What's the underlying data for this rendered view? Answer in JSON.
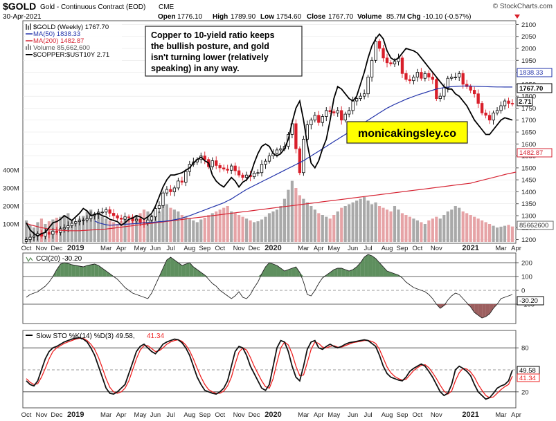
{
  "header": {
    "symbol": "$GOLD",
    "name": "Gold - Continuous Contract (EOD)",
    "exchange": "CME",
    "date": "30-Apr-2021",
    "watermark": "© StockCharts.com",
    "ohlc": {
      "open_label": "Open",
      "open": "1776.10",
      "high_label": "High",
      "high": "1789.90",
      "low_label": "Low",
      "low": "1754.60",
      "close_label": "Close",
      "close": "1767.70",
      "volume_label": "Volume",
      "volume": "85.7M",
      "chg_label": "Chg",
      "chg": "-10.10 (-0.57%)"
    }
  },
  "legend": {
    "gold": "$GOLD (Weekly) 1767.70",
    "ma50": "MA(50) 1838.33",
    "ma200": "MA(200) 1482.87",
    "volume": "Volume 85,662,600",
    "ratio": "$COPPER:$UST10Y 2.71"
  },
  "annotation": {
    "lines": [
      "Copper to 10-yield ratio keeps",
      "the bullish posture, and gold",
      "isn't turning lower (relatively",
      "speaking) in any way."
    ]
  },
  "brand": "monicakingsley.co",
  "price_badges": {
    "ma50": "1838.33",
    "close": "1767.70",
    "ratio": "2.71",
    "ma200": "1482.87",
    "volume": "85662600"
  },
  "cci_panel": {
    "label": "CCI(20) -30.20",
    "badge": "-30.20"
  },
  "sto_panel": {
    "label_main": "Slow STO %K(14) %D(3) 49.58,",
    "label_d": "41.34",
    "badge_k": "49.58",
    "badge_d": "41.34"
  },
  "colors": {
    "up": "#ffffff",
    "down": "#d81f2a",
    "ma50": "#2233aa",
    "ma200": "#d62433",
    "ratio": "#000000",
    "sto_d": "#ee2222",
    "cci_fill_pos": "#5e8f5e",
    "cci_fill_neg": "#9c5f5f",
    "brand_bg": "#ffff00"
  },
  "chart_data": [
    {
      "type": "candlestick",
      "title": "$GOLD Gold - Continuous Contract (EOD) CME",
      "y_ticks": [
        1200,
        1250,
        1300,
        1350,
        1400,
        1450,
        1500,
        1550,
        1600,
        1650,
        1700,
        1750,
        1800,
        1850,
        1900,
        1950,
        2000,
        2050,
        2100
      ],
      "ylim": [
        1190,
        2110
      ],
      "volume_ticks": [
        "100M",
        "200M",
        "300M",
        "400M"
      ],
      "x_tick_labels": [
        {
          "label": "Oct",
          "bold": false
        },
        {
          "label": "Nov",
          "bold": false
        },
        {
          "label": "Dec",
          "bold": false
        },
        {
          "label": "2019",
          "bold": true
        },
        {
          "label": "Mar",
          "bold": false
        },
        {
          "label": "Apr",
          "bold": false
        },
        {
          "label": "May",
          "bold": false
        },
        {
          "label": "Jun",
          "bold": false
        },
        {
          "label": "Jul",
          "bold": false
        },
        {
          "label": "Aug",
          "bold": false
        },
        {
          "label": "Sep",
          "bold": false
        },
        {
          "label": "Oct",
          "bold": false
        },
        {
          "label": "Nov",
          "bold": false
        },
        {
          "label": "Dec",
          "bold": false
        },
        {
          "label": "2020",
          "bold": true
        },
        {
          "label": "Mar",
          "bold": false
        },
        {
          "label": "Apr",
          "bold": false
        },
        {
          "label": "May",
          "bold": false
        },
        {
          "label": "Jun",
          "bold": false
        },
        {
          "label": "Jul",
          "bold": false
        },
        {
          "label": "Aug",
          "bold": false
        },
        {
          "label": "Sep",
          "bold": false
        },
        {
          "label": "Oct",
          "bold": false
        },
        {
          "label": "Nov",
          "bold": false
        },
        {
          "label": "2021",
          "bold": true
        },
        {
          "label": "Mar",
          "bold": false
        },
        {
          "label": "Apr",
          "bold": false
        }
      ],
      "x_tick_weeks": [
        0,
        4,
        8,
        13,
        21,
        25,
        30,
        34,
        38,
        43,
        47,
        51,
        56,
        60,
        65,
        73,
        77,
        81,
        86,
        90,
        95,
        99,
        103,
        108,
        117,
        125,
        129
      ],
      "close": [
        1200,
        1210,
        1215,
        1225,
        1214,
        1230,
        1222,
        1235,
        1230,
        1245,
        1250,
        1258,
        1268,
        1275,
        1280,
        1282,
        1288,
        1300,
        1305,
        1315,
        1315,
        1325,
        1310,
        1300,
        1290,
        1285,
        1295,
        1292,
        1278,
        1285,
        1272,
        1268,
        1282,
        1295,
        1330,
        1342,
        1395,
        1410,
        1400,
        1416,
        1445,
        1440,
        1485,
        1515,
        1525,
        1535,
        1550,
        1535,
        1505,
        1530,
        1510,
        1500,
        1495,
        1490,
        1508,
        1488,
        1470,
        1460,
        1470,
        1463,
        1478,
        1480,
        1515,
        1528,
        1550,
        1560,
        1575,
        1580,
        1590,
        1640,
        1685,
        1580,
        1480,
        1620,
        1680,
        1700,
        1720,
        1690,
        1715,
        1740,
        1735,
        1730,
        1740,
        1700,
        1725,
        1740,
        1780,
        1790,
        1800,
        1810,
        1880,
        1950,
        2030,
        2000,
        1960,
        1940,
        1935,
        1945,
        1960,
        1895,
        1870,
        1865,
        1880,
        1900,
        1875,
        1895,
        1880,
        1870,
        1790,
        1800,
        1835,
        1875,
        1880,
        1880,
        1895,
        1850,
        1840,
        1825,
        1810,
        1770,
        1730,
        1720,
        1700,
        1730,
        1740,
        1760,
        1780,
        1770,
        1767.7
      ],
      "ma50": [
        1278,
        1270,
        1266,
        1262,
        1260,
        1261,
        1262,
        1263,
        1264,
        1265,
        1266,
        1267,
        1268,
        1270,
        1271,
        1272,
        1273,
        1275,
        1276,
        1278,
        1280,
        1283,
        1286,
        1290,
        1295,
        1300,
        1306,
        1312,
        1318,
        1324,
        1330,
        1336,
        1342,
        1348,
        1354,
        1362,
        1370,
        1380,
        1390,
        1400,
        1410,
        1418,
        1426,
        1434,
        1442,
        1450,
        1458,
        1466,
        1474,
        1482,
        1490,
        1498,
        1506,
        1514,
        1522,
        1530,
        1540,
        1550,
        1560,
        1570,
        1580,
        1590,
        1600,
        1610,
        1620,
        1630,
        1640,
        1650,
        1660,
        1670,
        1680,
        1690,
        1700,
        1710,
        1720,
        1730,
        1740,
        1750,
        1758,
        1766,
        1773,
        1780,
        1787,
        1793,
        1799,
        1805,
        1810,
        1815,
        1820,
        1825,
        1830,
        1833,
        1836,
        1838,
        1840,
        1841,
        1842,
        1842.5,
        1843,
        1842.5,
        1841.5,
        1841,
        1840.5,
        1840,
        1839.5,
        1839,
        1838.7,
        1838.5,
        1838.4,
        1838.3,
        1838.33
      ],
      "ma50_start_week": 18,
      "ma200": [
        1268,
        1262,
        1258,
        1254,
        1250,
        1247,
        1244,
        1242,
        1240,
        1239,
        1238,
        1237,
        1237,
        1237,
        1237,
        1238,
        1239,
        1240,
        1241,
        1242,
        1243,
        1244,
        1246,
        1248,
        1250,
        1252,
        1254,
        1256,
        1258,
        1260,
        1262,
        1264,
        1266,
        1268,
        1270,
        1272,
        1274,
        1276,
        1278,
        1280,
        1282,
        1284,
        1286,
        1288,
        1290,
        1292,
        1294,
        1296,
        1298,
        1300,
        1302,
        1304,
        1306,
        1308,
        1310,
        1312,
        1314,
        1316,
        1318,
        1320,
        1322,
        1324,
        1326,
        1328,
        1330,
        1332,
        1334,
        1336,
        1338,
        1340,
        1342,
        1344,
        1346,
        1348,
        1350,
        1352,
        1354,
        1356,
        1358,
        1360,
        1362,
        1364,
        1366,
        1368,
        1370,
        1372,
        1374,
        1376,
        1378,
        1380,
        1382,
        1384,
        1386,
        1388,
        1390,
        1392,
        1394,
        1396,
        1398,
        1400,
        1402,
        1404,
        1406,
        1408,
        1410,
        1412,
        1414,
        1416,
        1418,
        1420,
        1422,
        1424,
        1426,
        1428,
        1430,
        1432,
        1434,
        1436,
        1440,
        1444,
        1448,
        1452,
        1456,
        1460,
        1464,
        1468,
        1472,
        1476,
        1479,
        1482.87
      ],
      "ratio_line": [
        1270,
        1240,
        1225,
        1215,
        1225,
        1230,
        1250,
        1270,
        1275,
        1285,
        1300,
        1290,
        1280,
        1295,
        1310,
        1330,
        1320,
        1300,
        1305,
        1310,
        1300,
        1295,
        1285,
        1280,
        1275,
        1260,
        1270,
        1285,
        1290,
        1300,
        1295,
        1285,
        1295,
        1310,
        1340,
        1380,
        1420,
        1450,
        1470,
        1470,
        1475,
        1480,
        1490,
        1500,
        1520,
        1535,
        1545,
        1530,
        1520,
        1470,
        1445,
        1430,
        1420,
        1440,
        1460,
        1445,
        1420,
        1440,
        1450,
        1470,
        1520,
        1560,
        1590,
        1600,
        1590,
        1560,
        1550,
        1560,
        1580,
        1620,
        1690,
        1750,
        1780,
        1700,
        1600,
        1520,
        1500,
        1530,
        1580,
        1620,
        1700,
        1790,
        1840,
        1830,
        1810,
        1790,
        1780,
        1800,
        1850,
        1900,
        1960,
        2010,
        2040,
        2060,
        2040,
        1990,
        1960,
        1950,
        1960,
        1980,
        2000,
        1995,
        1990,
        1980,
        1960,
        1940,
        1920,
        1900,
        1880,
        1860,
        1840,
        1830,
        1830,
        1810,
        1800,
        1780,
        1760,
        1730,
        1700,
        1680,
        1660,
        1640,
        1640,
        1660,
        1680,
        1700,
        1710,
        1705,
        1700
      ],
      "volume_m": [
        120,
        95,
        80,
        110,
        130,
        100,
        115,
        125,
        135,
        140,
        150,
        160,
        120,
        110,
        130,
        145,
        170,
        180,
        160,
        150,
        140,
        130,
        120,
        110,
        100,
        115,
        125,
        130,
        140,
        150,
        160,
        180,
        170,
        150,
        140,
        170,
        200,
        210,
        190,
        180,
        170,
        150,
        140,
        130,
        120,
        110,
        125,
        135,
        150,
        160,
        170,
        180,
        190,
        200,
        170,
        160,
        150,
        140,
        130,
        120,
        110,
        115,
        125,
        140,
        160,
        170,
        180,
        200,
        240,
        290,
        340,
        300,
        260,
        240,
        220,
        200,
        180,
        160,
        150,
        140,
        130,
        150,
        170,
        190,
        200,
        210,
        220,
        230,
        240,
        250,
        230,
        210,
        220,
        200,
        190,
        180,
        170,
        200,
        180,
        160,
        150,
        140,
        130,
        120,
        110,
        100,
        120,
        130,
        140,
        130,
        150,
        170,
        180,
        200,
        190,
        170,
        160,
        150,
        140,
        130,
        120,
        110,
        100,
        90,
        80,
        85,
        90,
        95,
        86
      ],
      "series": [
        {
          "name": "$GOLD (Weekly)"
        },
        {
          "name": "MA(50)"
        },
        {
          "name": "MA(200)"
        },
        {
          "name": "Volume"
        },
        {
          "name": "$COPPER:$UST10Y"
        }
      ]
    },
    {
      "type": "line",
      "title": "CCI(20) -30.20",
      "y_ticks": [
        200,
        100,
        0,
        -100
      ],
      "ylim": [
        -230,
        260
      ],
      "values": [
        -50,
        -30,
        -20,
        -10,
        10,
        30,
        60,
        100,
        150,
        190,
        200,
        195,
        185,
        180,
        175,
        170,
        180,
        185,
        190,
        180,
        160,
        140,
        120,
        100,
        80,
        50,
        20,
        0,
        -20,
        -30,
        -40,
        -50,
        -60,
        -20,
        40,
        100,
        160,
        220,
        240,
        220,
        200,
        180,
        190,
        200,
        170,
        150,
        130,
        110,
        80,
        50,
        30,
        0,
        -20,
        -40,
        -60,
        -40,
        -10,
        -50,
        -60,
        -30,
        20,
        60,
        120,
        170,
        200,
        190,
        180,
        160,
        140,
        150,
        160,
        170,
        130,
        60,
        -30,
        -40,
        0,
        50,
        90,
        110,
        130,
        150,
        160,
        160,
        150,
        140,
        150,
        170,
        200,
        240,
        260,
        250,
        230,
        200,
        170,
        140,
        130,
        120,
        110,
        90,
        60,
        40,
        20,
        10,
        0,
        -10,
        -30,
        -60,
        -100,
        -130,
        -110,
        -70,
        -40,
        -20,
        -30,
        -60,
        -90,
        -120,
        -160,
        -180,
        -200,
        -190,
        -170,
        -130,
        -100,
        -60,
        -50,
        -40,
        -30.2
      ],
      "start_week": 0
    },
    {
      "type": "line",
      "title": "Slow STO %K(14) %D(3)",
      "y_ticks": [
        80,
        20
      ],
      "ylim": [
        0,
        100
      ],
      "series": [
        {
          "name": "%K",
          "values": [
            35,
            30,
            28,
            35,
            50,
            65,
            75,
            80,
            82,
            85,
            88,
            90,
            92,
            93,
            94,
            92,
            88,
            80,
            70,
            55,
            40,
            25,
            18,
            17,
            20,
            25,
            30,
            45,
            60,
            75,
            82,
            85,
            80,
            75,
            72,
            78,
            85,
            88,
            90,
            92,
            91,
            87,
            80,
            70,
            55,
            40,
            30,
            22,
            20,
            18,
            17,
            20,
            25,
            35,
            55,
            75,
            82,
            80,
            70,
            55,
            45,
            35,
            25,
            22,
            30,
            55,
            80,
            90,
            88,
            75,
            55,
            40,
            35,
            55,
            78,
            88,
            90,
            80,
            78,
            82,
            85,
            82,
            80,
            82,
            85,
            87,
            88,
            89,
            90,
            91,
            90,
            86,
            82,
            70,
            55,
            45,
            40,
            38,
            36,
            35,
            40,
            48,
            52,
            55,
            58,
            55,
            48,
            40,
            30,
            20,
            15,
            18,
            30,
            50,
            55,
            52,
            48,
            42,
            30,
            20,
            15,
            10,
            12,
            18,
            25,
            28,
            30,
            35,
            49.58
          ]
        },
        {
          "name": "%D",
          "values": [
            38,
            33,
            30,
            31,
            40,
            52,
            65,
            75,
            80,
            83,
            86,
            88,
            90,
            92,
            93,
            93,
            90,
            85,
            78,
            67,
            53,
            38,
            26,
            20,
            18,
            20,
            25,
            35,
            50,
            65,
            77,
            83,
            83,
            79,
            75,
            76,
            80,
            85,
            88,
            90,
            91,
            89,
            84,
            76,
            65,
            52,
            40,
            30,
            23,
            20,
            18,
            18,
            21,
            28,
            40,
            58,
            74,
            80,
            77,
            67,
            55,
            45,
            35,
            27,
            25,
            38,
            60,
            80,
            88,
            84,
            72,
            55,
            42,
            43,
            60,
            78,
            88,
            86,
            81,
            80,
            82,
            83,
            81,
            81,
            83,
            85,
            87,
            88,
            89,
            90,
            90,
            89,
            86,
            78,
            66,
            54,
            46,
            41,
            38,
            36,
            37,
            43,
            49,
            53,
            56,
            57,
            53,
            46,
            38,
            29,
            21,
            17,
            21,
            35,
            46,
            52,
            51,
            47,
            40,
            30,
            22,
            15,
            12,
            13,
            18,
            23,
            27,
            30,
            41.34
          ]
        }
      ]
    }
  ]
}
